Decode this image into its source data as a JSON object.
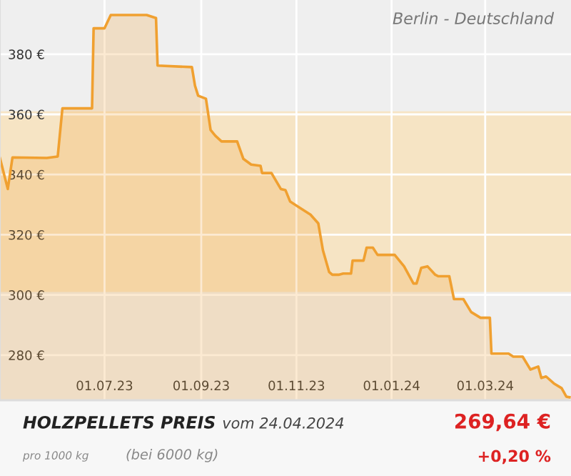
{
  "chart_data": {
    "type": "area",
    "title": "HOLZPELLETS PREIS",
    "subtitle": "Berlin - Deutschland",
    "annotations": [
      "vom 24.04.2024",
      "pro 1000 kg",
      "(bei 6000 kg)",
      "269,64 €",
      "+0,20 %"
    ],
    "x": [
      "2023-04-25",
      "2023-04-30",
      "2023-05-03",
      "2023-05-25",
      "2023-06-01",
      "2023-06-04",
      "2023-06-23",
      "2023-06-24",
      "2023-07-01",
      "2023-07-05",
      "2023-07-28",
      "2023-08-03",
      "2023-08-04",
      "2023-08-26",
      "2023-08-28",
      "2023-08-30",
      "2023-09-04",
      "2023-09-07",
      "2023-09-10",
      "2023-09-14",
      "2023-09-24",
      "2023-09-28",
      "2023-10-03",
      "2023-10-09",
      "2023-10-10",
      "2023-10-16",
      "2023-10-22",
      "2023-10-25",
      "2023-10-28",
      "2023-11-03",
      "2023-11-10",
      "2023-11-15",
      "2023-11-18",
      "2023-11-22",
      "2023-11-24",
      "2023-11-28",
      "2023-12-01",
      "2023-12-06",
      "2023-12-07",
      "2023-12-14",
      "2023-12-16",
      "2023-12-20",
      "2023-12-23",
      "2024-01-03",
      "2024-01-09",
      "2024-01-15",
      "2024-01-17",
      "2024-01-20",
      "2024-01-24",
      "2024-01-29",
      "2024-01-31",
      "2024-02-07",
      "2024-02-10",
      "2024-02-16",
      "2024-02-21",
      "2024-02-27",
      "2024-03-04",
      "2024-03-05",
      "2024-03-16",
      "2024-03-19",
      "2024-03-25",
      "2024-03-30",
      "2024-04-04",
      "2024-04-06",
      "2024-04-09",
      "2024-04-14",
      "2024-04-19",
      "2024-04-22",
      "2024-04-24"
    ],
    "series": [
      {
        "color": "#f0a030",
        "values": [
          345.4,
          335.2,
          345.7,
          345.5,
          346,
          362,
          362,
          388.6,
          388.6,
          393,
          393,
          392,
          376.2,
          375.7,
          369.5,
          366.2,
          365.2,
          354.8,
          352.9,
          351,
          351,
          345.2,
          343.3,
          342.9,
          340.5,
          340.5,
          335.2,
          334.8,
          331,
          329,
          326.7,
          323.8,
          314.8,
          307.6,
          306.7,
          306.7,
          307.1,
          307.1,
          311.4,
          311.4,
          315.7,
          315.7,
          313.3,
          313.3,
          309.5,
          303.8,
          303.8,
          309,
          309.5,
          306.7,
          306.2,
          306.2,
          298.6,
          298.6,
          294.3,
          292.4,
          292.4,
          280.5,
          280.5,
          279.5,
          279.5,
          275.2,
          276.2,
          272.4,
          272.9,
          270.6,
          269,
          266.2,
          266
        ]
      }
    ],
    "xlim": [
      "2023-04-25",
      "2024-04-25"
    ],
    "xticks": [
      {
        "value": "2023-07-01",
        "label": "01.07.23"
      },
      {
        "value": "2023-09-01",
        "label": "01.09.23"
      },
      {
        "value": "2023-11-01",
        "label": "01.11.23"
      },
      {
        "value": "2024-01-01",
        "label": "01.01.24"
      },
      {
        "value": "2024-03-01",
        "label": "01.03.24"
      }
    ],
    "ylim": [
      265,
      398
    ],
    "yticks": [
      {
        "value": 280,
        "label": "280 €"
      },
      {
        "value": 300,
        "label": "300 €"
      },
      {
        "value": 320,
        "label": "320 €"
      },
      {
        "value": 340,
        "label": "340 €"
      },
      {
        "value": 360,
        "label": "360 €"
      },
      {
        "value": 380,
        "label": "380 €"
      }
    ],
    "bands": [
      {
        "axis": "y",
        "from": 301,
        "to": 361,
        "color": "#f6e4c4"
      }
    ],
    "grid": true
  }
}
